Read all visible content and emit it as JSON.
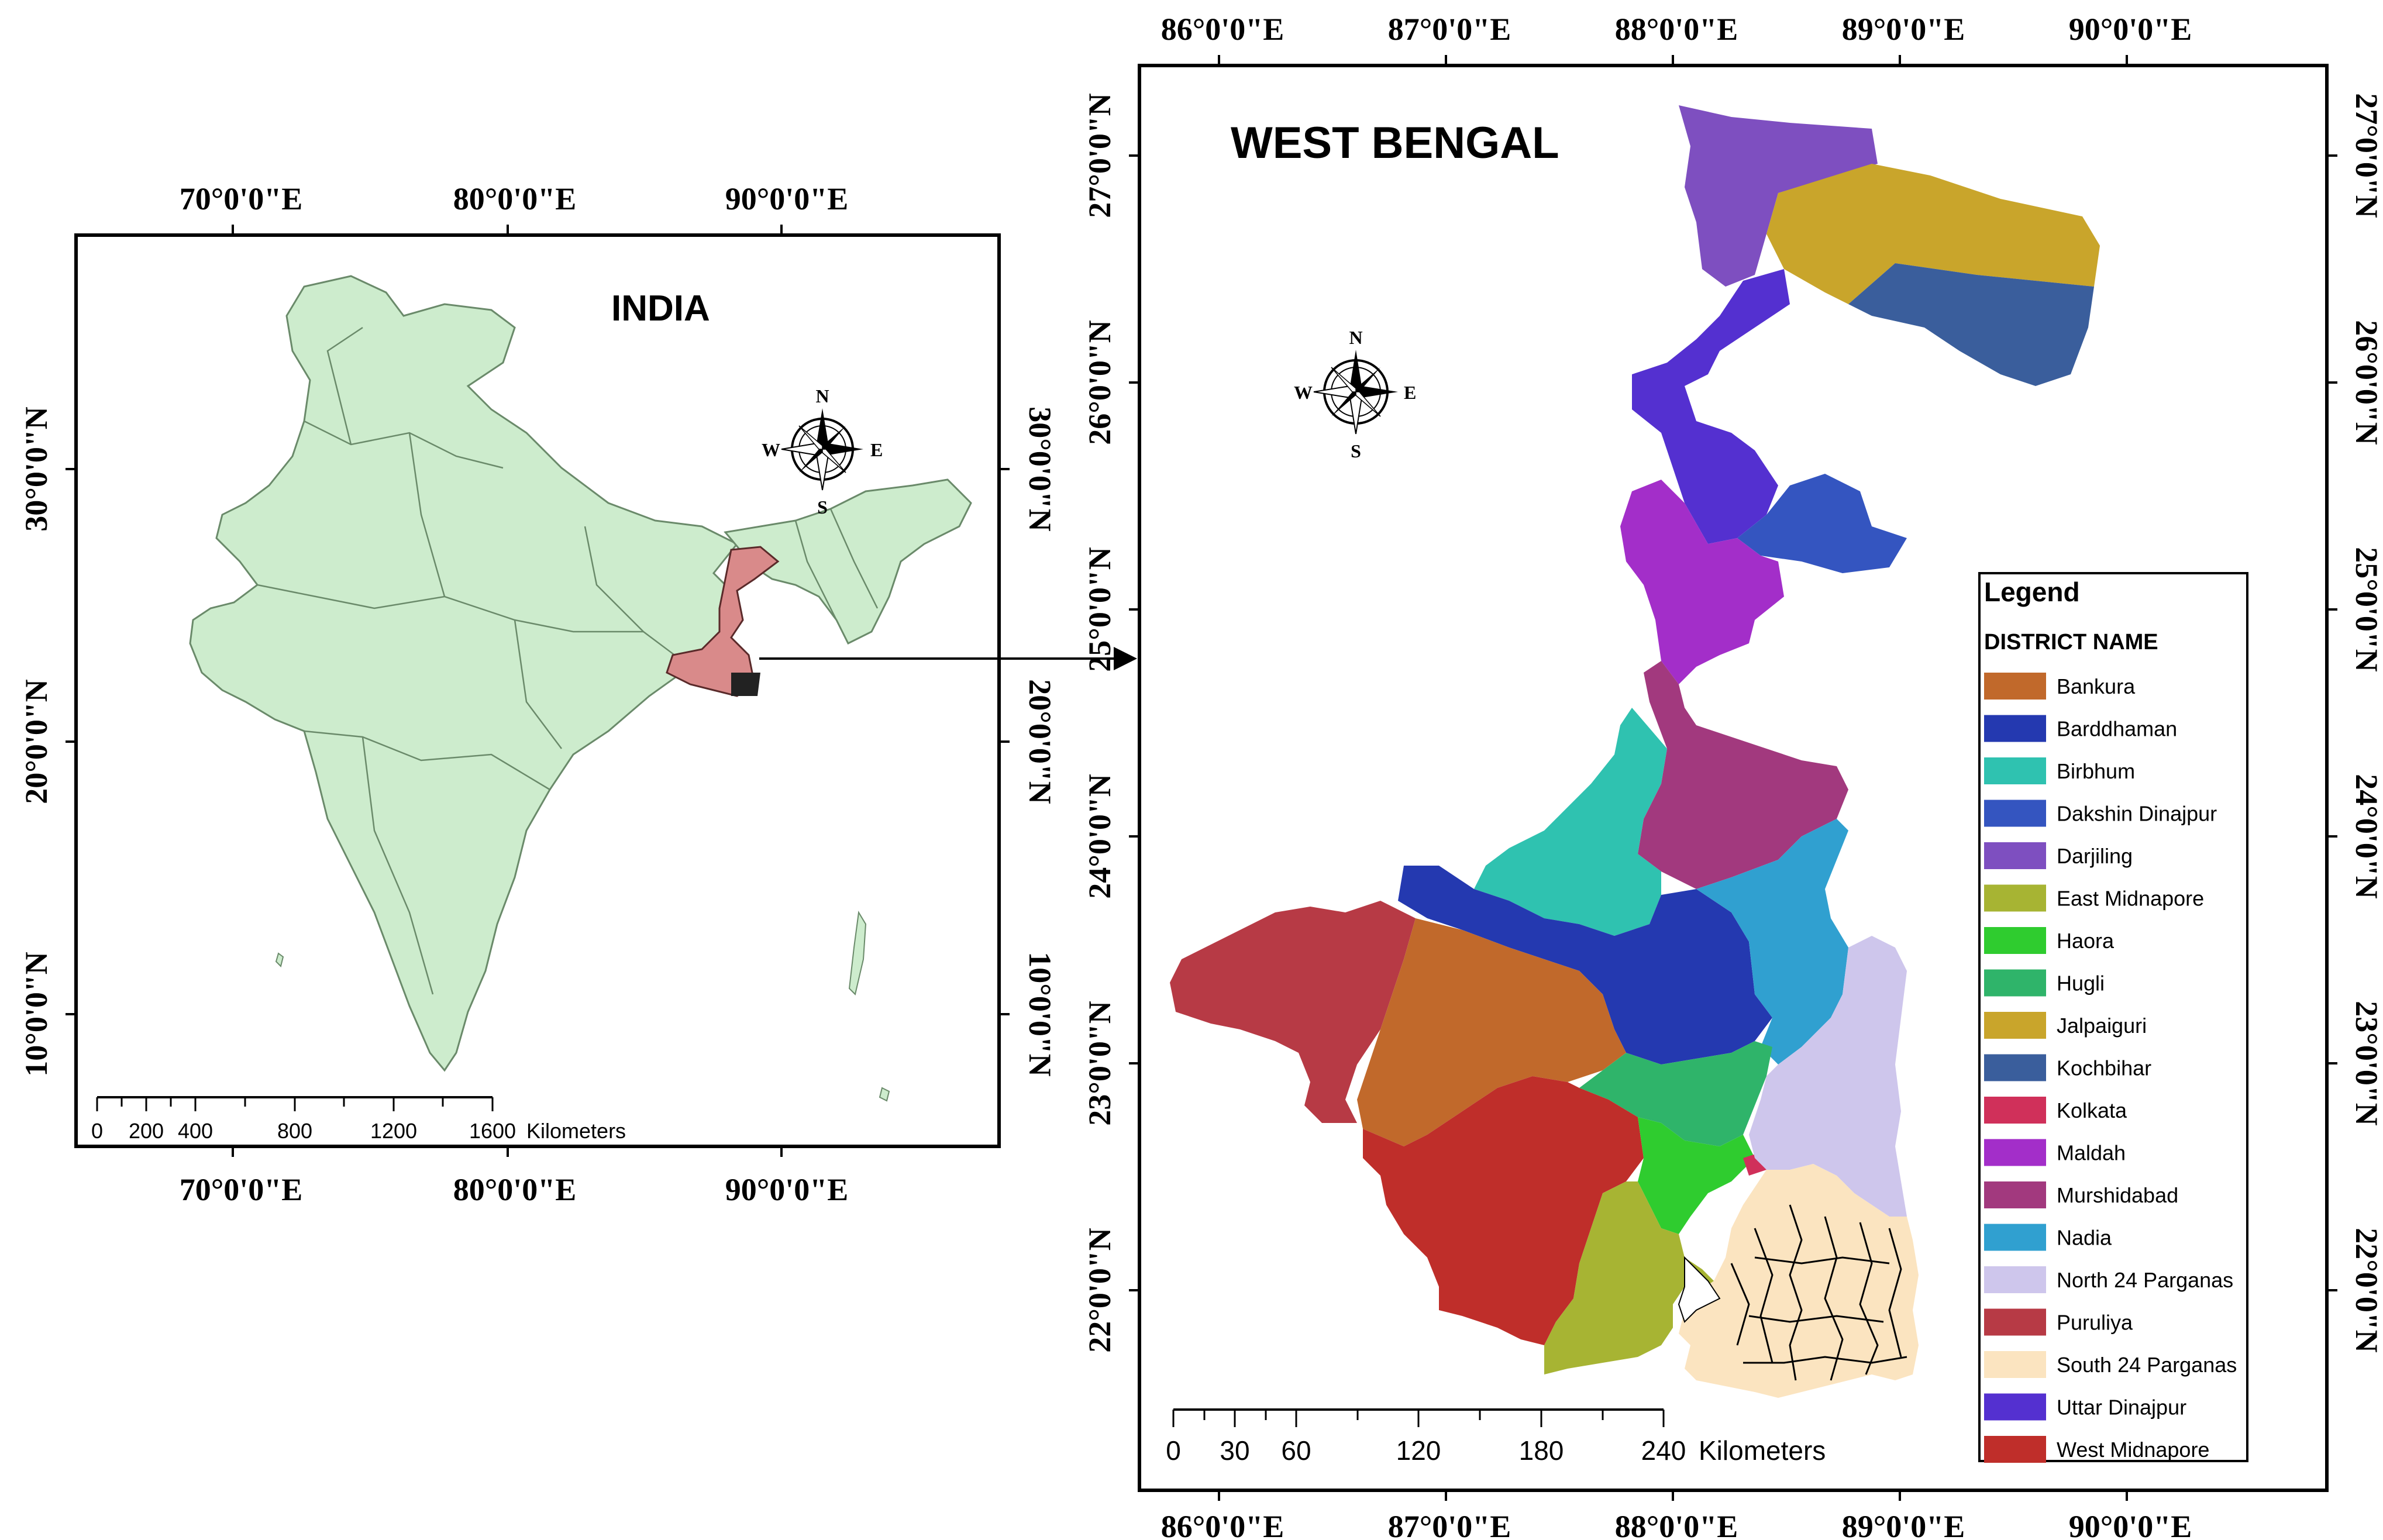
{
  "india_map": {
    "title": "INDIA",
    "top_lon_labels": [
      "70°0'0\"E",
      "80°0'0\"E",
      "90°0'0\"E"
    ],
    "bottom_lon_labels": [
      "70°0'0\"E",
      "80°0'0\"E",
      "90°0'0\"E"
    ],
    "left_lat_labels": [
      "30°0'0\"N",
      "20°0'0\"N",
      "10°0'0\"N"
    ],
    "right_lat_labels": [
      "30°0'0\"N",
      "20°0'0\"N",
      "10°0'0\"N"
    ],
    "scale_ticks": [
      "0",
      "200",
      "400",
      "800",
      "1200",
      "1600"
    ],
    "scale_unit": "Kilometers",
    "land_color": "#cdeccd",
    "highlight_color": "#d98a8a",
    "compass": {
      "n": "N",
      "s": "S",
      "e": "E",
      "w": "W"
    }
  },
  "wb_map": {
    "title": "WEST BENGAL",
    "top_lon_labels": [
      "86°0'0\"E",
      "87°0'0\"E",
      "88°0'0\"E",
      "89°0'0\"E",
      "90°0'0\"E"
    ],
    "bottom_lon_labels": [
      "86°0'0\"E",
      "87°0'0\"E",
      "88°0'0\"E",
      "89°0'0\"E",
      "90°0'0\"E"
    ],
    "left_lat_labels": [
      "27°0'0\"N",
      "26°0'0\"N",
      "25°0'0\"N",
      "24°0'0\"N",
      "23°0'0\"N",
      "22°0'0\"N"
    ],
    "right_lat_labels": [
      "27°0'0\"N",
      "26°0'0\"N",
      "25°0'0\"N",
      "24°0'0\"N",
      "23°0'0\"N",
      "22°0'0\"N"
    ],
    "scale_ticks": [
      "0",
      "30",
      "60",
      "120",
      "180",
      "240"
    ],
    "scale_unit": "Kilometers",
    "compass": {
      "n": "N",
      "s": "S",
      "e": "E",
      "w": "W"
    }
  },
  "legend": {
    "title": "Legend",
    "subtitle": "DISTRICT NAME",
    "items": [
      {
        "name": "Bankura",
        "color": "#c1692b"
      },
      {
        "name": "Barddhaman",
        "color": "#2439b0"
      },
      {
        "name": "Birbhum",
        "color": "#2fc2b0"
      },
      {
        "name": "Dakshin Dinajpur",
        "color": "#3455c0"
      },
      {
        "name": "Darjiling",
        "color": "#7e4fc0"
      },
      {
        "name": "East Midnapore",
        "color": "#a7b433"
      },
      {
        "name": "Haora",
        "color": "#2fcc2f"
      },
      {
        "name": "Hugli",
        "color": "#2fb46a"
      },
      {
        "name": "Jalpaiguri",
        "color": "#c9a52b"
      },
      {
        "name": "Kochbihar",
        "color": "#3a5e9c"
      },
      {
        "name": "Kolkata",
        "color": "#d0305a"
      },
      {
        "name": "Maldah",
        "color": "#a32ec9"
      },
      {
        "name": "Murshidabad",
        "color": "#a2397e"
      },
      {
        "name": "Nadia",
        "color": "#30a0d0"
      },
      {
        "name": "North 24 Parganas",
        "color": "#cec6ec"
      },
      {
        "name": "Puruliya",
        "color": "#b73a45"
      },
      {
        "name": "South 24 Parganas",
        "color": "#fbe4c0"
      },
      {
        "name": "Uttar Dinajpur",
        "color": "#5430d0"
      },
      {
        "name": "West Midnapore",
        "color": "#bf2e2a"
      }
    ]
  }
}
